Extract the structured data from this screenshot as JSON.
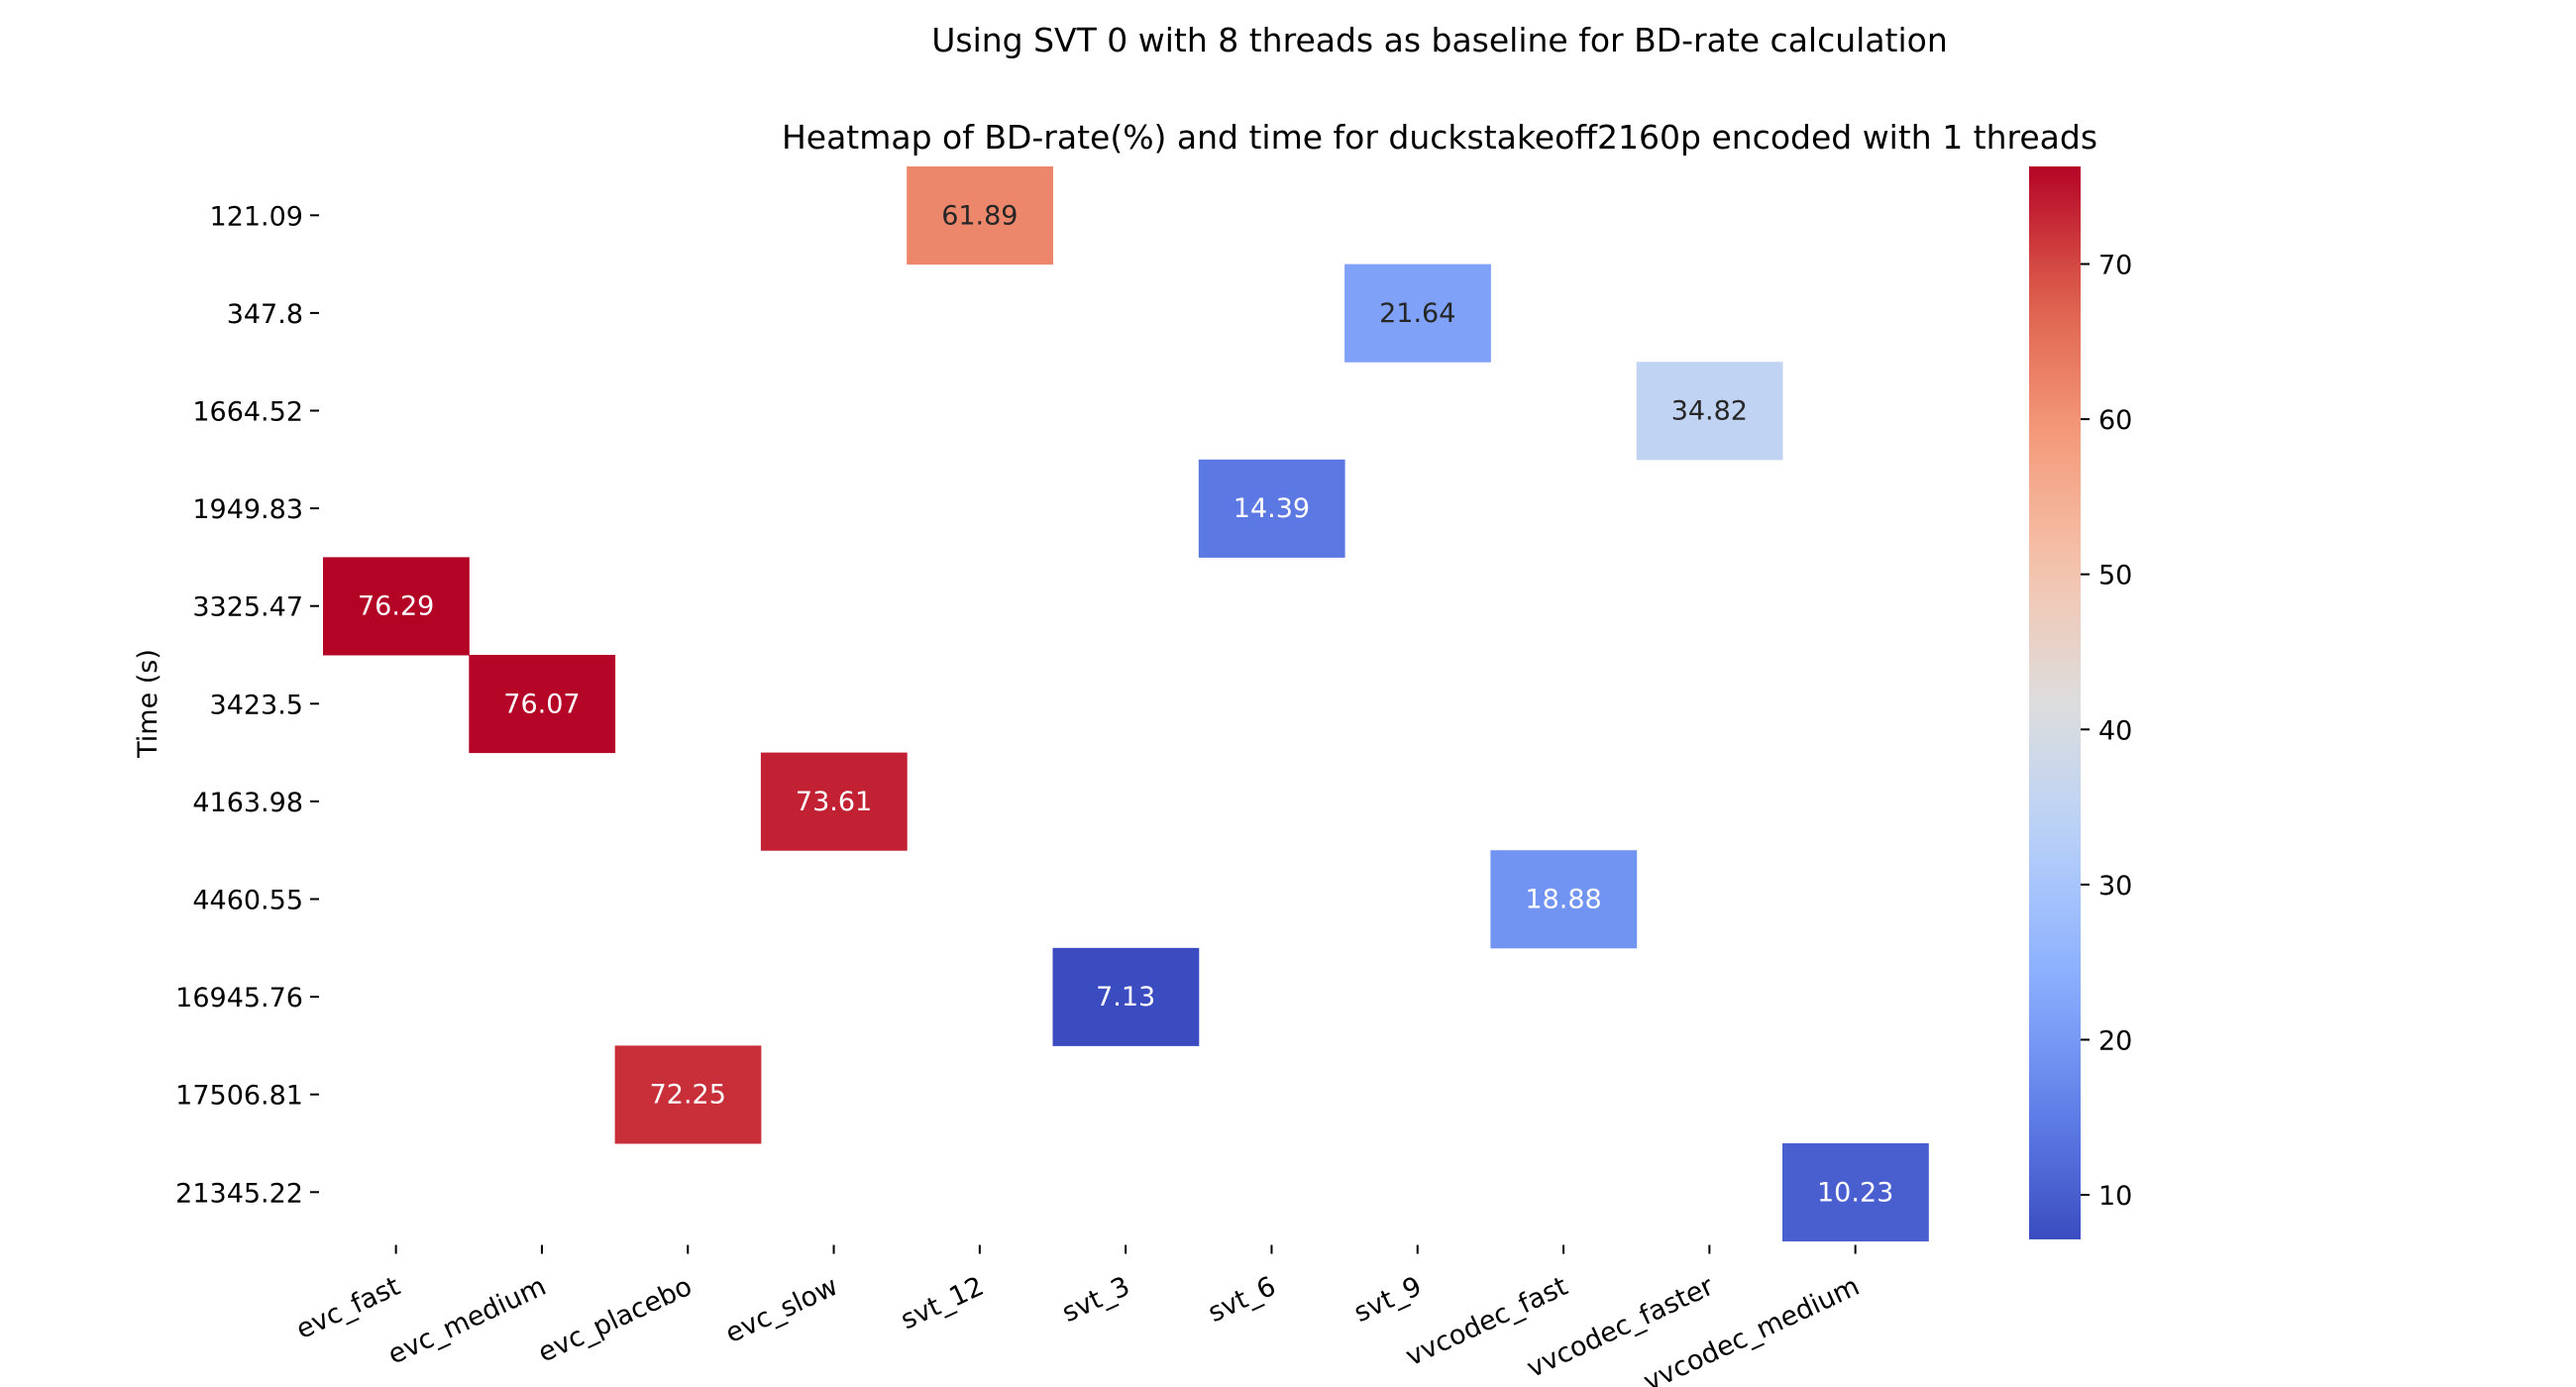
{
  "chart_data": {
    "type": "heatmap",
    "suptitle": "Using SVT 0 with 8 threads as baseline for BD-rate calculation",
    "title": "Heatmap of BD-rate(%) and time for duckstakeoff2160p encoded with 1 threads",
    "ylabel": "Time (s)",
    "xlabel": "",
    "x_categories": [
      "evc_fast",
      "evc_medium",
      "evc_placebo",
      "evc_slow",
      "svt_12",
      "svt_3",
      "svt_6",
      "svt_9",
      "vvcodec_fast",
      "vvcodec_faster",
      "vvcodec_medium"
    ],
    "y_categories": [
      "121.09",
      "347.8",
      "1664.52",
      "1949.83",
      "3325.47",
      "3423.5",
      "4163.98",
      "4460.55",
      "16945.76",
      "17506.81",
      "21345.22"
    ],
    "cells": [
      {
        "x": "svt_12",
        "y": "121.09",
        "value": 61.89,
        "label": "61.89"
      },
      {
        "x": "svt_9",
        "y": "347.8",
        "value": 21.64,
        "label": "21.64"
      },
      {
        "x": "vvcodec_faster",
        "y": "1664.52",
        "value": 34.82,
        "label": "34.82"
      },
      {
        "x": "svt_6",
        "y": "1949.83",
        "value": 14.39,
        "label": "14.39"
      },
      {
        "x": "evc_fast",
        "y": "3325.47",
        "value": 76.29,
        "label": "76.29"
      },
      {
        "x": "evc_medium",
        "y": "3423.5",
        "value": 76.07,
        "label": "76.07"
      },
      {
        "x": "evc_slow",
        "y": "4163.98",
        "value": 73.61,
        "label": "73.61"
      },
      {
        "x": "vvcodec_fast",
        "y": "4460.55",
        "value": 18.88,
        "label": "18.88"
      },
      {
        "x": "svt_3",
        "y": "16945.76",
        "value": 7.13,
        "label": "7.13"
      },
      {
        "x": "evc_placebo",
        "y": "17506.81",
        "value": 72.25,
        "label": "72.25"
      },
      {
        "x": "vvcodec_medium",
        "y": "21345.22",
        "value": 10.23,
        "label": "10.23"
      }
    ],
    "colormap": "coolwarm",
    "colorbar": {
      "vmin": 7.13,
      "vmax": 76.29,
      "ticks": [
        10,
        20,
        30,
        40,
        50,
        60,
        70
      ],
      "placement": "right"
    },
    "grid": false,
    "legend": "none"
  }
}
